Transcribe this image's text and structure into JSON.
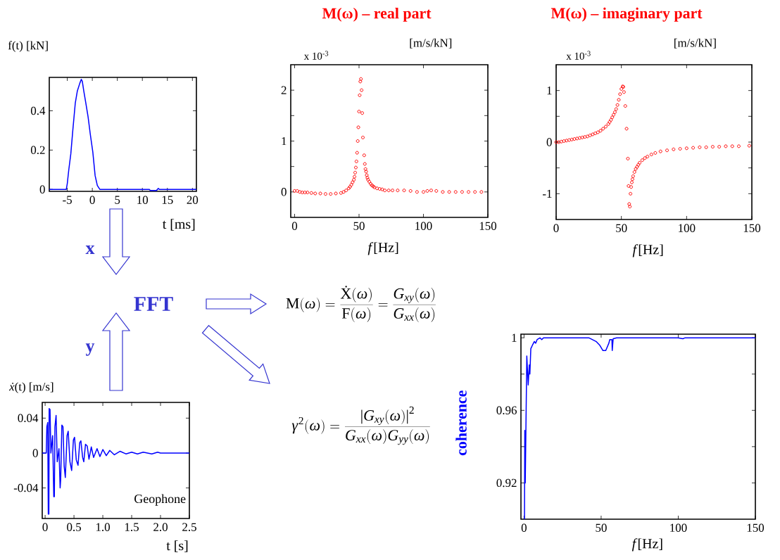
{
  "chart_data": [
    {
      "type": "line",
      "ylabel": "f(t) [kN]",
      "xlabel": "t [ms]",
      "color": "#0000ff",
      "x": [
        -8.6,
        -5.2,
        -5.0,
        -4.7,
        -4.3,
        -3.9,
        -3.4,
        -3.0,
        -2.5,
        -2.2,
        -2.0,
        -1.7,
        -1.3,
        -0.85,
        -0.4,
        0.1,
        0.56,
        1.0,
        1.5,
        11.4,
        11.6,
        12.8,
        13.2,
        13.4,
        20.8
      ],
      "values": [
        0,
        0,
        0.03,
        0.1,
        0.18,
        0.3,
        0.44,
        0.5,
        0.54,
        0.56,
        0.55,
        0.5,
        0.44,
        0.37,
        0.28,
        0.19,
        0.07,
        0.02,
        0,
        0,
        -0.006,
        -0.006,
        0.005,
        0,
        0
      ],
      "xlim": [
        -8.6,
        20.8
      ],
      "ylim": [
        -0.01,
        0.57
      ],
      "xticks": [
        -5,
        0,
        5,
        10,
        15,
        20
      ],
      "yticks": [
        0,
        0.2,
        0.4
      ]
    },
    {
      "type": "scatter",
      "title": "M(ω) – real part",
      "ylabel": "[m/s/kN]",
      "xlabel": "*f*[Hz]",
      "color": "#ff0000",
      "marker": "circle",
      "annotations": [
        "x 10$^{-3}$"
      ],
      "x": [
        0,
        2,
        4,
        6,
        8,
        10,
        13,
        16,
        20,
        24,
        28,
        32,
        36,
        38,
        40,
        42,
        43,
        44,
        45,
        46,
        46.5,
        47,
        47.5,
        48,
        48.5,
        49,
        49.5,
        50,
        50.5,
        51,
        51.5,
        52,
        52.5,
        53,
        54,
        54.5,
        55,
        55.5,
        56,
        56.5,
        57,
        58,
        59,
        60,
        61,
        62,
        64,
        66,
        68,
        70,
        73,
        76,
        80,
        85,
        90,
        95,
        100,
        103,
        106,
        110,
        115,
        120,
        125,
        130,
        135,
        140,
        145
      ],
      "values": [
        0.02,
        0.02,
        0.0,
        -0.01,
        -0.01,
        -0.01,
        -0.02,
        -0.03,
        -0.03,
        -0.04,
        -0.04,
        -0.03,
        -0.02,
        0.0,
        0.03,
        0.07,
        0.1,
        0.14,
        0.19,
        0.24,
        0.3,
        0.38,
        0.48,
        0.6,
        0.77,
        1.0,
        1.27,
        1.58,
        1.9,
        2.17,
        2.22,
        2.0,
        1.55,
        1.07,
        0.72,
        0.55,
        0.45,
        0.4,
        0.33,
        0.28,
        0.24,
        0.2,
        0.16,
        0.13,
        0.11,
        0.09,
        0.07,
        0.06,
        0.05,
        0.03,
        0.03,
        0.03,
        0.03,
        0.03,
        0.02,
        0.0,
        0.0,
        0.02,
        0.03,
        0.02,
        0,
        0,
        0,
        0,
        0,
        0,
        0
      ],
      "xlim": [
        -3,
        150
      ],
      "ylim": [
        -0.5,
        2.5
      ],
      "xticks": [
        0,
        50,
        100,
        150
      ],
      "yticks": [
        0,
        {
          "value": 0.5,
          "label": null
        },
        1,
        {
          "value": 1.5,
          "label": null
        },
        2
      ]
    },
    {
      "type": "scatter",
      "title": "M(ω) – imaginary part",
      "ylabel": "[m/s/kN]",
      "xlabel": "*f*[Hz]",
      "color": "#ff0000",
      "marker": "circle",
      "annotations": [
        "x 10$^{-3}$"
      ],
      "x": [
        0,
        2,
        4,
        6,
        8,
        10,
        12,
        14,
        16,
        18,
        20,
        22,
        24,
        26,
        28,
        30,
        32,
        34,
        36,
        38,
        40,
        41,
        42,
        43,
        44,
        45,
        46,
        47,
        48,
        49,
        50,
        51,
        51.5,
        52,
        53,
        54,
        55,
        55.5,
        56,
        56.5,
        57,
        57.5,
        58,
        58.5,
        59,
        60,
        61,
        62,
        63,
        64,
        66,
        68,
        70,
        73,
        76,
        80,
        85,
        90,
        95,
        100,
        105,
        110,
        115,
        120,
        125,
        130,
        135,
        140,
        148
      ],
      "values": [
        0,
        0,
        0.01,
        0.02,
        0.03,
        0.04,
        0.05,
        0.06,
        0.07,
        0.08,
        0.09,
        0.1,
        0.11,
        0.13,
        0.15,
        0.17,
        0.19,
        0.22,
        0.26,
        0.3,
        0.35,
        0.39,
        0.43,
        0.48,
        0.53,
        0.58,
        0.64,
        0.72,
        0.82,
        0.93,
        1.03,
        1.08,
        1.07,
        0.97,
        0.7,
        0.26,
        -0.32,
        -0.85,
        -1.2,
        -1.25,
        -1.0,
        -0.87,
        -0.78,
        -0.72,
        -0.66,
        -0.58,
        -0.52,
        -0.48,
        -0.44,
        -0.4,
        -0.35,
        -0.31,
        -0.28,
        -0.24,
        -0.21,
        -0.18,
        -0.16,
        -0.14,
        -0.13,
        -0.12,
        -0.11,
        -0.1,
        -0.1,
        -0.09,
        -0.09,
        -0.08,
        -0.08,
        -0.08,
        -0.07
      ],
      "xlim": [
        0,
        150
      ],
      "ylim": [
        -1.5,
        1.5
      ],
      "xticks": [
        0,
        50,
        100,
        150
      ],
      "yticks": [
        -1,
        {
          "value": -0.5,
          "label": null
        },
        0,
        {
          "value": 0.5,
          "label": null
        },
        1
      ]
    },
    {
      "type": "line",
      "ylabel": "*ẋ*(t) [m/s]",
      "xlabel": "t [s]",
      "color": "#0000ff",
      "annotations": [
        "Geophone"
      ],
      "x": [
        -0.05,
        0.02,
        0.03,
        0.045,
        0.055,
        0.065,
        0.07,
        0.085,
        0.1,
        0.13,
        0.15,
        0.16,
        0.17,
        0.19,
        0.21,
        0.24,
        0.26,
        0.27,
        0.29,
        0.31,
        0.33,
        0.35,
        0.38,
        0.4,
        0.43,
        0.46,
        0.49,
        0.51,
        0.54,
        0.57,
        0.6,
        0.62,
        0.65,
        0.67,
        0.7,
        0.73,
        0.76,
        0.8,
        0.84,
        0.9,
        0.95,
        1.0,
        1.06,
        1.12,
        1.2,
        1.3,
        1.4,
        1.5,
        1.6,
        1.7,
        1.85,
        1.95,
        2.0,
        2.5
      ],
      "values": [
        0,
        0,
        0.03,
        0.035,
        -0.07,
        -0.07,
        0.051,
        0.05,
        0.0,
        0.02,
        -0.05,
        -0.05,
        0.03,
        0.043,
        -0.01,
        0.005,
        -0.04,
        -0.03,
        0.032,
        0.03,
        -0.015,
        -0.028,
        0.02,
        0.025,
        -0.01,
        -0.02,
        0.015,
        0.018,
        -0.008,
        -0.014,
        0.012,
        0.014,
        -0.005,
        -0.01,
        0.01,
        0.008,
        -0.007,
        0.007,
        -0.005,
        0.005,
        -0.004,
        0.004,
        -0.003,
        0.003,
        -0.002,
        0.002,
        -0.001,
        0.001,
        -0.001,
        0.001,
        -0.001,
        0.001,
        0,
        0
      ],
      "xlim": [
        -0.05,
        2.5
      ],
      "ylim": [
        -0.075,
        0.058
      ],
      "xticks": [
        0,
        0.5,
        {
          "value": 1,
          "label": "1.0"
        },
        1.5,
        {
          "value": 2,
          "label": "2.0"
        },
        2.5
      ],
      "yticks": [
        -0.04,
        0,
        0.04
      ]
    },
    {
      "type": "line",
      "ylabel": "coherence",
      "xlabel": "*f*[Hz]",
      "color": "#0000ff",
      "x": [
        0.3,
        0.5,
        0.6,
        0.8,
        1.8,
        2.7,
        3.4,
        3.8,
        4.4,
        5.5,
        6.7,
        7.5,
        8.5,
        10.4,
        11.5,
        12.6,
        20,
        30,
        42,
        46.7,
        49,
        51.1,
        53,
        55,
        55.6,
        57,
        57.2,
        57.8,
        60,
        100,
        103,
        104.4,
        107,
        110,
        150
      ],
      "values": [
        0.9,
        0.949,
        0.92,
        0.92,
        0.99,
        0.974,
        0.985,
        0.98,
        0.994,
        0.996,
        0.998,
        0.997,
        0.999,
        1.0,
        0.999,
        1.0,
        1.0,
        1.0,
        1.0,
        0.998,
        0.996,
        0.993,
        0.993,
        0.997,
        0.999,
        0.999,
        0.993,
        0.9995,
        1.0,
        1.0,
        0.9995,
        1.0,
        1.0,
        1.0,
        1.0
      ],
      "xlim": [
        -2,
        150
      ],
      "ylim": [
        0.9,
        1.002
      ],
      "xticks": [
        0,
        50,
        100,
        150
      ],
      "yticks": [
        0.92,
        {
          "value": 0.94,
          "label": null
        },
        0.96,
        {
          "value": 0.98,
          "label": null
        },
        1
      ]
    },
    {
      "type": "other",
      "annotations": [
        "FFT",
        "x",
        "y",
        "\\mbox{M}(\\omega)=\\frac{\\mbox{Ẋ}(\\omega)}{\\mbox{F}(\\omega)}=\\frac{G_{xy}(\\omega)}{G_{xx}(\\omega)}",
        "\\gamma^{2}(\\omega)=\\frac{\\mbox{|}G_{xy}(\\omega)\\mbox{|}^{2}}{G_{xx}(\\omega)G_{yy}(\\omega)}"
      ]
    }
  ]
}
